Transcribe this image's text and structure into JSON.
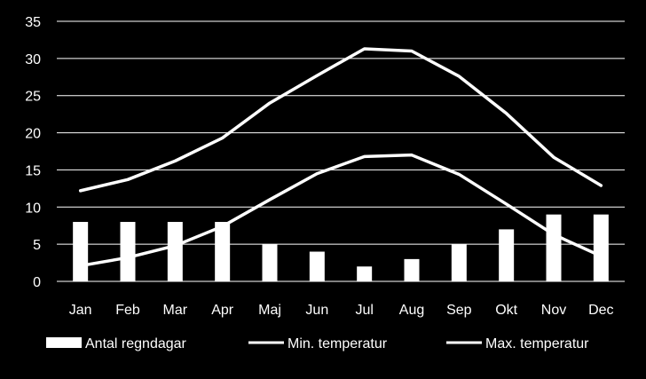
{
  "chart_data": {
    "type": "bar+line",
    "categories": [
      "Jan",
      "Feb",
      "Mar",
      "Apr",
      "Maj",
      "Jun",
      "Jul",
      "Aug",
      "Sep",
      "Okt",
      "Nov",
      "Dec"
    ],
    "ylim": [
      0,
      35
    ],
    "yticks": [
      0,
      5,
      10,
      15,
      20,
      25,
      30,
      35
    ],
    "grid": true,
    "legend_position": "bottom",
    "series": [
      {
        "name": "Antal regndagar",
        "type": "bar",
        "color": "#ffffff",
        "values": [
          8,
          8,
          8,
          8,
          5,
          4,
          2,
          3,
          5,
          7,
          9,
          9
        ]
      },
      {
        "name": "Min. temperatur",
        "type": "line",
        "color": "#ffffff",
        "values": [
          2.1,
          3.2,
          4.8,
          7.4,
          11.0,
          14.5,
          16.8,
          17.0,
          14.4,
          10.4,
          6.3,
          3.4
        ]
      },
      {
        "name": "Max. temperatur",
        "type": "line",
        "color": "#ffffff",
        "values": [
          12.2,
          13.7,
          16.2,
          19.3,
          24.0,
          27.7,
          31.3,
          31.0,
          27.6,
          22.6,
          16.7,
          12.9
        ]
      }
    ]
  }
}
